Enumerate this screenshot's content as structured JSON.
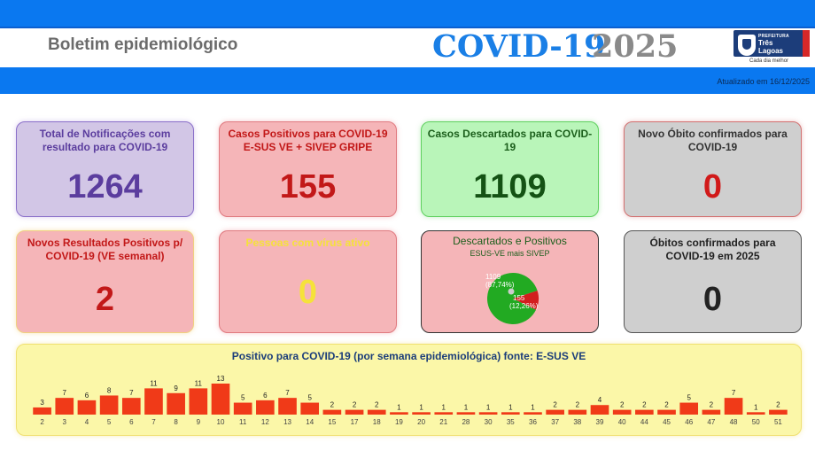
{
  "header": {
    "subtitle": "Boletim epidemiológico",
    "title_main": "COVID-19",
    "title_year": "2025",
    "logo": {
      "prefix": "PREFEITURA",
      "name_line1": "Três",
      "name_line2": "Lagoas",
      "slogan": "Cada dia melhor"
    },
    "updated": "Atualizado em 16/12/2025"
  },
  "cards": {
    "total_notifications": {
      "label": "Total de Notificações com resultado para COVID-19",
      "value": "1264"
    },
    "positive_cases": {
      "label": "Casos Positivos para COVID-19 E-SUS VE + SIVEP GRIPE",
      "value": "155"
    },
    "discarded_cases": {
      "label": "Casos Descartados para COVID-19",
      "value": "1109"
    },
    "new_death": {
      "label": "Novo Óbito confirmados para COVID-19",
      "value": "0"
    },
    "new_positive_results": {
      "label": "Novos Resultados Positivos p/ COVID-19 (VE semanal)",
      "value": "2"
    },
    "active_virus": {
      "label": "Pessoas com vírus ativo",
      "value": "0"
    },
    "discarded_positive": {
      "label": "Descartados e Positivos",
      "sublabel": "ESUS-VE mais SIVEP"
    },
    "deaths_2025": {
      "label": "Óbitos confirmados para COVID-19 em 2025",
      "value": "0"
    }
  },
  "colors": {
    "pie_discarded": "#22aa22",
    "pie_positive": "#d21e1e",
    "bar": "#f03a18"
  },
  "pie_data": {
    "type": "pie",
    "slices": [
      {
        "label": "1109",
        "percent_label": "(87,74%)",
        "value": 1109
      },
      {
        "label": "155",
        "percent_label": "(12,26%)",
        "value": 155
      }
    ]
  },
  "chart_data": {
    "type": "bar",
    "title": "Positivo para COVID-19 (por semana epidemiológica) fonte: E-SUS VE",
    "categories": [
      "2",
      "3",
      "4",
      "5",
      "6",
      "7",
      "8",
      "9",
      "10",
      "11",
      "12",
      "13",
      "14",
      "15",
      "17",
      "18",
      "19",
      "20",
      "21",
      "28",
      "30",
      "35",
      "36",
      "37",
      "38",
      "39",
      "40",
      "44",
      "45",
      "46",
      "47",
      "48",
      "50",
      "51"
    ],
    "values": [
      3,
      7,
      6,
      8,
      7,
      11,
      9,
      11,
      13,
      5,
      6,
      7,
      5,
      2,
      2,
      2,
      1,
      1,
      1,
      1,
      1,
      1,
      1,
      2,
      2,
      4,
      2,
      2,
      2,
      5,
      2,
      7,
      1,
      2
    ]
  }
}
